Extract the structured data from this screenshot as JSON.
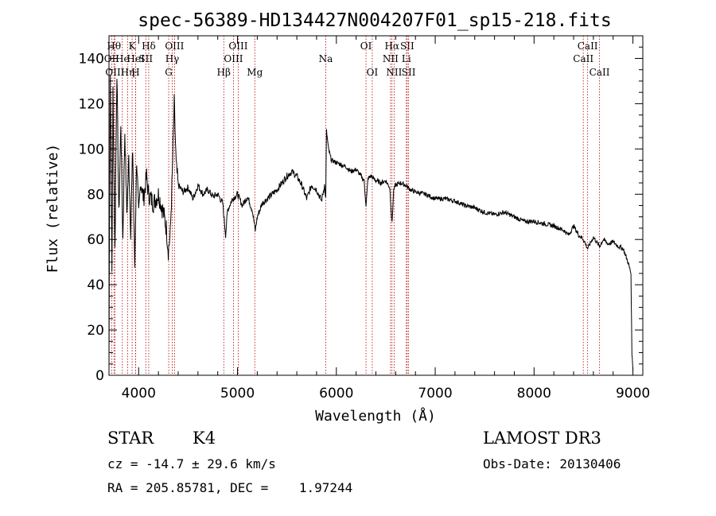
{
  "chart_data": {
    "type": "line",
    "title": "spec-56389-HD134427N004207F01_sp15-218.fits",
    "xlabel": "Wavelength (Å)",
    "ylabel": "Flux (relative)",
    "xlim": [
      3700,
      9100
    ],
    "ylim": [
      0,
      150
    ],
    "xticks": [
      4000,
      5000,
      6000,
      7000,
      8000,
      9000
    ],
    "yticks": [
      0,
      20,
      40,
      60,
      80,
      100,
      120,
      140
    ],
    "grid": false,
    "series": [
      {
        "name": "flux",
        "anchors": [
          [
            3700,
            2
          ],
          [
            3705,
            70
          ],
          [
            3712,
            135
          ],
          [
            3720,
            100
          ],
          [
            3730,
            45
          ],
          [
            3740,
            125
          ],
          [
            3760,
            55
          ],
          [
            3780,
            135
          ],
          [
            3800,
            70
          ],
          [
            3820,
            112
          ],
          [
            3840,
            60
          ],
          [
            3860,
            108
          ],
          [
            3880,
            72
          ],
          [
            3900,
            96
          ],
          [
            3920,
            64
          ],
          [
            3940,
            100
          ],
          [
            3960,
            48
          ],
          [
            3980,
            96
          ],
          [
            4000,
            70
          ],
          [
            4020,
            86
          ],
          [
            4050,
            78
          ],
          [
            4080,
            88
          ],
          [
            4100,
            80
          ],
          [
            4150,
            76
          ],
          [
            4200,
            80
          ],
          [
            4250,
            72
          ],
          [
            4280,
            65
          ],
          [
            4300,
            55
          ],
          [
            4320,
            62
          ],
          [
            4340,
            88
          ],
          [
            4360,
            120
          ],
          [
            4380,
            92
          ],
          [
            4400,
            84
          ],
          [
            4450,
            81
          ],
          [
            4500,
            83
          ],
          [
            4550,
            78
          ],
          [
            4600,
            84
          ],
          [
            4650,
            80
          ],
          [
            4700,
            82
          ],
          [
            4750,
            79
          ],
          [
            4800,
            80
          ],
          [
            4850,
            76
          ],
          [
            4880,
            62
          ],
          [
            4900,
            73
          ],
          [
            4950,
            78
          ],
          [
            5000,
            80
          ],
          [
            5050,
            75
          ],
          [
            5100,
            79
          ],
          [
            5150,
            73
          ],
          [
            5180,
            64
          ],
          [
            5200,
            70
          ],
          [
            5250,
            76
          ],
          [
            5300,
            78
          ],
          [
            5350,
            80
          ],
          [
            5400,
            82
          ],
          [
            5450,
            85
          ],
          [
            5500,
            88
          ],
          [
            5550,
            90
          ],
          [
            5600,
            88
          ],
          [
            5650,
            84
          ],
          [
            5700,
            78
          ],
          [
            5750,
            84
          ],
          [
            5800,
            82
          ],
          [
            5850,
            77
          ],
          [
            5880,
            84
          ],
          [
            5893,
            78
          ],
          [
            5900,
            108
          ],
          [
            5920,
            100
          ],
          [
            5950,
            95
          ],
          [
            6000,
            94
          ],
          [
            6050,
            93
          ],
          [
            6100,
            92
          ],
          [
            6150,
            90
          ],
          [
            6200,
            91
          ],
          [
            6250,
            88
          ],
          [
            6280,
            86
          ],
          [
            6300,
            75
          ],
          [
            6320,
            87
          ],
          [
            6350,
            88
          ],
          [
            6400,
            86
          ],
          [
            6450,
            85
          ],
          [
            6500,
            86
          ],
          [
            6540,
            83
          ],
          [
            6563,
            67
          ],
          [
            6580,
            82
          ],
          [
            6600,
            84
          ],
          [
            6650,
            85
          ],
          [
            6700,
            84
          ],
          [
            6750,
            82
          ],
          [
            6800,
            81
          ],
          [
            6900,
            80
          ],
          [
            7000,
            78
          ],
          [
            7100,
            78
          ],
          [
            7200,
            77
          ],
          [
            7300,
            75
          ],
          [
            7400,
            74
          ],
          [
            7500,
            72
          ],
          [
            7600,
            71
          ],
          [
            7700,
            72
          ],
          [
            7800,
            70
          ],
          [
            7900,
            68
          ],
          [
            8000,
            68
          ],
          [
            8100,
            67
          ],
          [
            8200,
            66
          ],
          [
            8300,
            64
          ],
          [
            8350,
            62
          ],
          [
            8400,
            66
          ],
          [
            8450,
            62
          ],
          [
            8500,
            60
          ],
          [
            8542,
            56
          ],
          [
            8600,
            61
          ],
          [
            8662,
            57
          ],
          [
            8700,
            60
          ],
          [
            8750,
            58
          ],
          [
            8800,
            59
          ],
          [
            8850,
            57
          ],
          [
            8900,
            56
          ],
          [
            8950,
            50
          ],
          [
            8980,
            45
          ],
          [
            8990,
            10
          ],
          [
            9000,
            2
          ]
        ]
      }
    ],
    "spectral_lines": [
      {
        "label": "OII",
        "wavelength": 3727,
        "row": 2
      },
      {
        "label": "Hθ",
        "wavelength": 3750,
        "row": 1
      },
      {
        "label": "OIII",
        "wavelength": 3760,
        "row": 3
      },
      {
        "label": "He",
        "wavelength": 3835,
        "row": 2
      },
      {
        "label": "Hη",
        "wavelength": 3889,
        "row": 3
      },
      {
        "label": "K",
        "wavelength": 3934,
        "row": 1
      },
      {
        "label": "HeI",
        "wavelength": 3970,
        "row": 2
      },
      {
        "label": "H",
        "wavelength": 3969,
        "row": 3
      },
      {
        "label": "Hδ",
        "wavelength": 4102,
        "row": 1
      },
      {
        "label": "SII",
        "wavelength": 4072,
        "row": 2
      },
      {
        "label": "OIII",
        "wavelength": 4363,
        "row": 1
      },
      {
        "label": "Hγ",
        "wavelength": 4340,
        "row": 2
      },
      {
        "label": "G",
        "wavelength": 4304,
        "row": 3
      },
      {
        "label": "Hβ",
        "wavelength": 4861,
        "row": 3
      },
      {
        "label": "OIII",
        "wavelength": 5007,
        "row": 1
      },
      {
        "label": "OIII",
        "wavelength": 4959,
        "row": 2
      },
      {
        "label": "Mg",
        "wavelength": 5175,
        "row": 3
      },
      {
        "label": "Na",
        "wavelength": 5893,
        "row": 2
      },
      {
        "label": "OI",
        "wavelength": 6300,
        "row": 1
      },
      {
        "label": "OI",
        "wavelength": 6363,
        "row": 3
      },
      {
        "label": "Hα",
        "wavelength": 6563,
        "row": 1
      },
      {
        "label": "NII",
        "wavelength": 6548,
        "row": 2
      },
      {
        "label": "NII",
        "wavelength": 6584,
        "row": 3
      },
      {
        "label": "SII",
        "wavelength": 6717,
        "row": 1
      },
      {
        "label": "Li",
        "wavelength": 6708,
        "row": 2
      },
      {
        "label": "SII",
        "wavelength": 6731,
        "row": 3
      },
      {
        "label": "CaII",
        "wavelength": 8542,
        "row": 1
      },
      {
        "label": "CaII",
        "wavelength": 8498,
        "row": 2
      },
      {
        "label": "CaII",
        "wavelength": 8662,
        "row": 3
      }
    ]
  },
  "info": {
    "class_label": "STAR",
    "subclass": "K4",
    "survey": "LAMOST DR3",
    "redshift": "cz = -14.7 ± 29.6 km/s",
    "obs_date": "Obs-Date: 20130406",
    "coords": "RA = 205.85781, DEC =    1.97244"
  }
}
